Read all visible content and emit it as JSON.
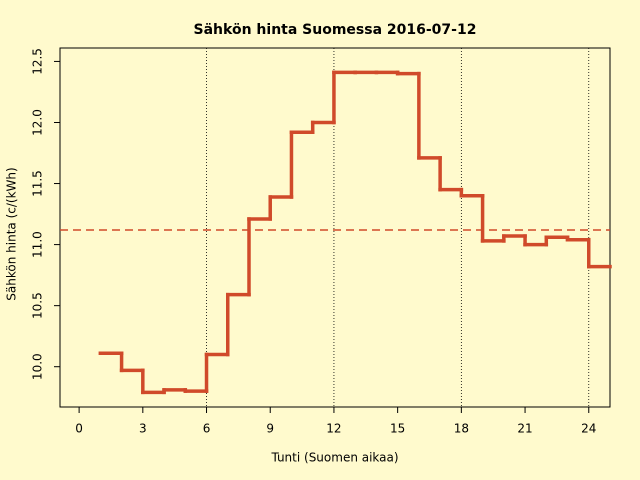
{
  "chart_data": {
    "type": "step",
    "title": "Sähkön hinta Suomessa 2016-07-12",
    "x_label": "Tunti (Suomen aikaa)",
    "y_label": "Sähkön hinta (c/(kWh)",
    "x": [
      1,
      2,
      3,
      4,
      5,
      6,
      7,
      8,
      9,
      10,
      11,
      12,
      13,
      14,
      15,
      16,
      17,
      18,
      19,
      20,
      21,
      22,
      23,
      24
    ],
    "values": [
      10.11,
      9.97,
      9.79,
      9.81,
      9.8,
      10.1,
      10.59,
      11.21,
      11.39,
      11.92,
      12.0,
      12.41,
      12.41,
      12.41,
      12.4,
      11.71,
      11.45,
      11.4,
      11.03,
      11.07,
      11.0,
      11.06,
      11.04,
      10.82
    ],
    "color": "#d04a2a",
    "mean": 11.12,
    "vlines": [
      6,
      12,
      18,
      24
    ],
    "xlim": [
      -0.9,
      25.0
    ],
    "ylim": [
      9.67,
      12.61
    ],
    "xticks": [
      0,
      3,
      6,
      9,
      12,
      15,
      18,
      21,
      24
    ],
    "yticks": [
      {
        "value": 10,
        "label": "10.0"
      },
      10.5,
      {
        "value": 11,
        "label": "11.0"
      },
      11.5,
      {
        "value": 12,
        "label": "12.0"
      },
      12.5
    ]
  }
}
